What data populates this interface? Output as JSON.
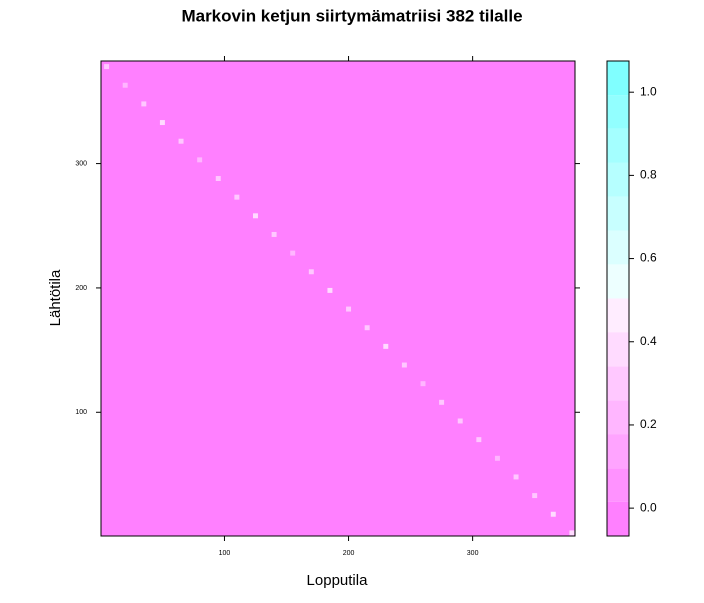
{
  "chart_data": {
    "type": "heatmap",
    "title": "Markovin ketjun siirtymämatriisi 382 tilalle",
    "x_label": "Lopputila",
    "y_label": "Lähtötila",
    "xlim": [
      0.5,
      382.5
    ],
    "ylim": [
      0.5,
      382.5
    ],
    "xticks": [
      100,
      200,
      300
    ],
    "yticks": [
      100,
      200,
      300
    ],
    "background_value": 0,
    "cells": {
      "x": [
        5,
        20,
        35,
        50,
        65,
        80,
        95,
        110,
        125,
        140,
        155,
        170,
        185,
        200,
        215,
        230,
        245,
        260,
        275,
        290,
        305,
        320,
        335,
        350,
        365,
        380
      ],
      "y": [
        378,
        363,
        348,
        333,
        318,
        303,
        288,
        273,
        258,
        243,
        228,
        213,
        198,
        183,
        168,
        153,
        138,
        123,
        108,
        93,
        78,
        63,
        48,
        33,
        18,
        3
      ],
      "values": [
        0.3,
        0.25,
        0.3,
        0.35,
        0.3,
        0.25,
        0.3,
        0.3,
        0.35,
        0.3,
        0.25,
        0.3,
        0.35,
        0.3,
        0.3,
        0.35,
        0.3,
        0.25,
        0.3,
        0.3,
        0.3,
        0.25,
        0.3,
        0.3,
        0.35,
        0.4
      ]
    },
    "colorbar": {
      "limits": [
        -0.067,
        1.075
      ],
      "breaks": [
        -0.067,
        0.015,
        0.096,
        0.178,
        0.259,
        0.341,
        0.423,
        0.504,
        0.586,
        0.667,
        0.749,
        0.83,
        0.912,
        0.993,
        1.075
      ],
      "colors": [
        "#ff80ff",
        "#ff92ff",
        "#ffa4ff",
        "#ffb6ff",
        "#ffc8ff",
        "#ffdbff",
        "#ffedff",
        "#edffff",
        "#dbffff",
        "#c8ffff",
        "#b6ffff",
        "#a4ffff",
        "#92ffff",
        "#80ffff"
      ],
      "ticks": [
        {
          "value": 0,
          "label": "0.0"
        },
        0.2,
        0.4,
        0.6,
        0.8,
        {
          "value": 1,
          "label": "1.0"
        }
      ]
    }
  }
}
